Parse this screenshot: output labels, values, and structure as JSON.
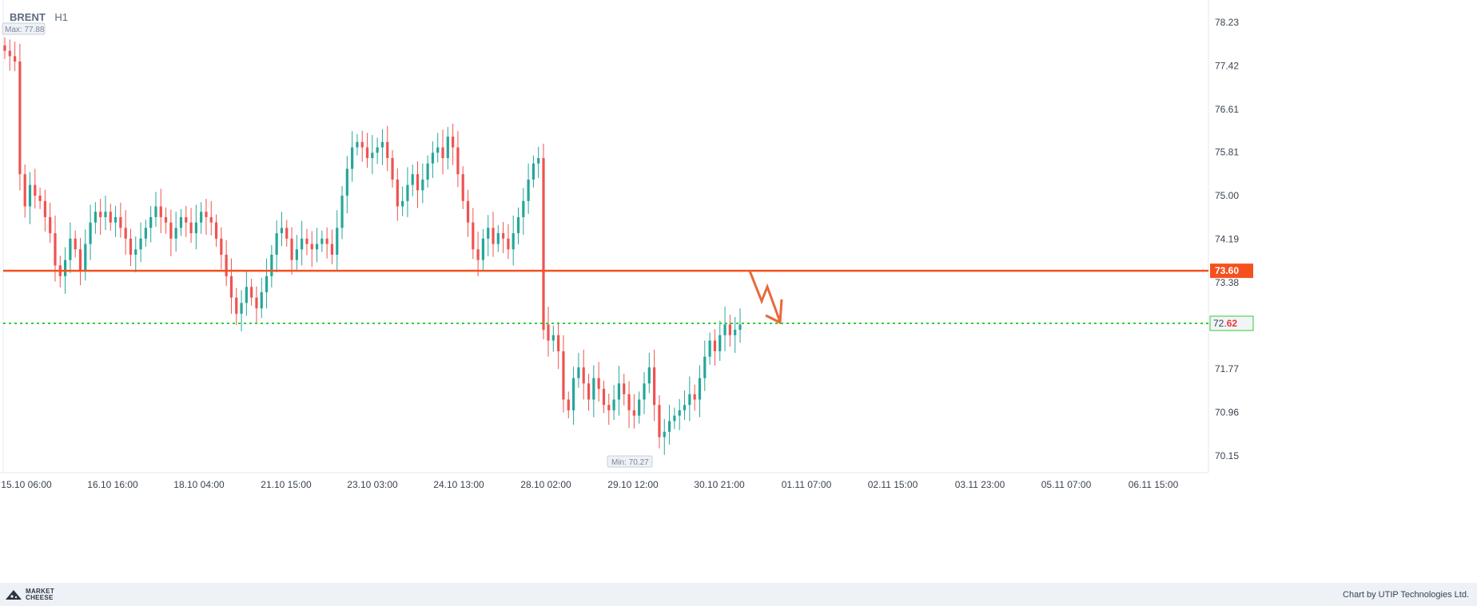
{
  "instrument": {
    "symbol": "BRENT",
    "timeframe": "H1"
  },
  "extremes": {
    "max_label": "Max: 77.88",
    "min_label": "Min: 70.27"
  },
  "footer": {
    "logo_line1": "MARKET",
    "logo_line2": "CHEESE",
    "credit": "Chart by UTIP Technologies Ltd."
  },
  "colors": {
    "up": "#26a69a",
    "down": "#ef5350",
    "resistance": "#f4511e",
    "current": "#2fd12f",
    "arrow": "#e8693a"
  },
  "chart_data": {
    "type": "candlestick",
    "y_axis": {
      "ticks": [
        "78.23",
        "77.42",
        "76.61",
        "75.81",
        "75.00",
        "74.19",
        "73.38",
        "71.77",
        "70.96",
        "70.15"
      ],
      "range": [
        69.6,
        78.5
      ]
    },
    "x_axis": {
      "ticks": [
        "15.10 06:00",
        "16.10 16:00",
        "18.10 04:00",
        "21.10 15:00",
        "23.10 03:00",
        "24.10 13:00",
        "28.10 02:00",
        "29.10 12:00",
        "30.10 21:00",
        "01.11 07:00",
        "02.11 15:00",
        "03.11 23:00",
        "05.11 07:00",
        "06.11 15:00"
      ]
    },
    "levels": [
      {
        "name": "resistance",
        "price": 73.6,
        "label": "73.60",
        "style": "solid"
      },
      {
        "name": "current",
        "price": 72.62,
        "label_main": "72.",
        "label_tail": "62",
        "style": "dotted"
      }
    ],
    "forecast_arrow": {
      "direction": "down",
      "from_price": 73.6,
      "to_price": 72.62
    },
    "max": 77.88,
    "min": 70.27,
    "closes": [
      77.7,
      77.6,
      77.5,
      75.4,
      74.8,
      75.2,
      75.0,
      74.9,
      74.6,
      74.3,
      73.7,
      73.5,
      73.8,
      74.2,
      74.0,
      73.6,
      74.1,
      74.5,
      74.7,
      74.6,
      74.7,
      74.5,
      74.6,
      74.4,
      74.2,
      73.9,
      74.0,
      74.2,
      74.4,
      74.6,
      74.8,
      74.6,
      74.5,
      74.2,
      74.4,
      74.6,
      74.5,
      74.3,
      74.5,
      74.7,
      74.6,
      74.5,
      74.2,
      73.9,
      73.5,
      73.1,
      72.8,
      73.0,
      73.3,
      73.1,
      72.9,
      73.2,
      73.5,
      73.9,
      74.3,
      74.4,
      74.2,
      73.8,
      74.0,
      74.2,
      74.1,
      74.0,
      74.1,
      74.2,
      74.1,
      73.9,
      74.4,
      75.0,
      75.5,
      75.9,
      76.0,
      75.9,
      75.7,
      75.8,
      75.9,
      76.0,
      75.7,
      75.3,
      74.8,
      74.9,
      75.2,
      75.4,
      75.1,
      75.3,
      75.6,
      75.8,
      75.9,
      75.7,
      76.1,
      75.9,
      75.4,
      74.9,
      74.5,
      74.0,
      73.8,
      74.2,
      74.4,
      74.1,
      74.3,
      74.2,
      74.0,
      74.3,
      74.6,
      74.9,
      75.3,
      75.6,
      75.7,
      72.5,
      72.3,
      72.4,
      72.1,
      71.2,
      71.0,
      71.6,
      71.8,
      71.5,
      71.2,
      71.6,
      71.4,
      71.1,
      71.0,
      71.2,
      71.5,
      71.3,
      71.0,
      70.9,
      71.2,
      71.5,
      71.8,
      71.1,
      70.5,
      70.6,
      70.8,
      70.9,
      71.0,
      71.1,
      71.3,
      71.2,
      71.6,
      72.0,
      72.3,
      72.1,
      72.4,
      72.6,
      72.4,
      72.5,
      72.6
    ],
    "gap_after_index": 107
  }
}
